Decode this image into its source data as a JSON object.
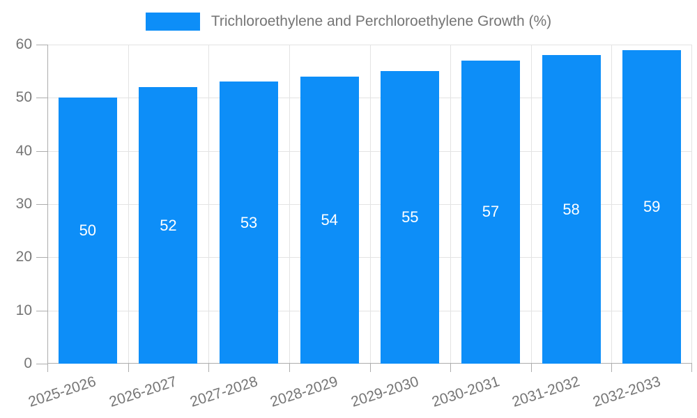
{
  "chart_data": {
    "type": "bar",
    "title": "Trichloroethylene and Perchloroethylene Growth (%)",
    "categories": [
      "2025-2026",
      "2026-2027",
      "2027-2028",
      "2028-2029",
      "2029-2030",
      "2030-2031",
      "2031-2032",
      "2032-2033"
    ],
    "values": [
      50,
      52,
      53,
      54,
      55,
      57,
      58,
      59
    ],
    "xlabel": "",
    "ylabel": "",
    "ylim": [
      0,
      60
    ],
    "yticks": [
      0,
      10,
      20,
      30,
      40,
      50,
      60
    ],
    "grid": true,
    "legend_position": "top-center",
    "x_label_rotation_deg": -18,
    "colors": {
      "bar": "#0d8ef8",
      "bar_label": "#ffffff",
      "axis_text": "#757575",
      "grid_line": "#e3e3e3",
      "axis_line": "#adadad",
      "background": "#ffffff"
    }
  }
}
